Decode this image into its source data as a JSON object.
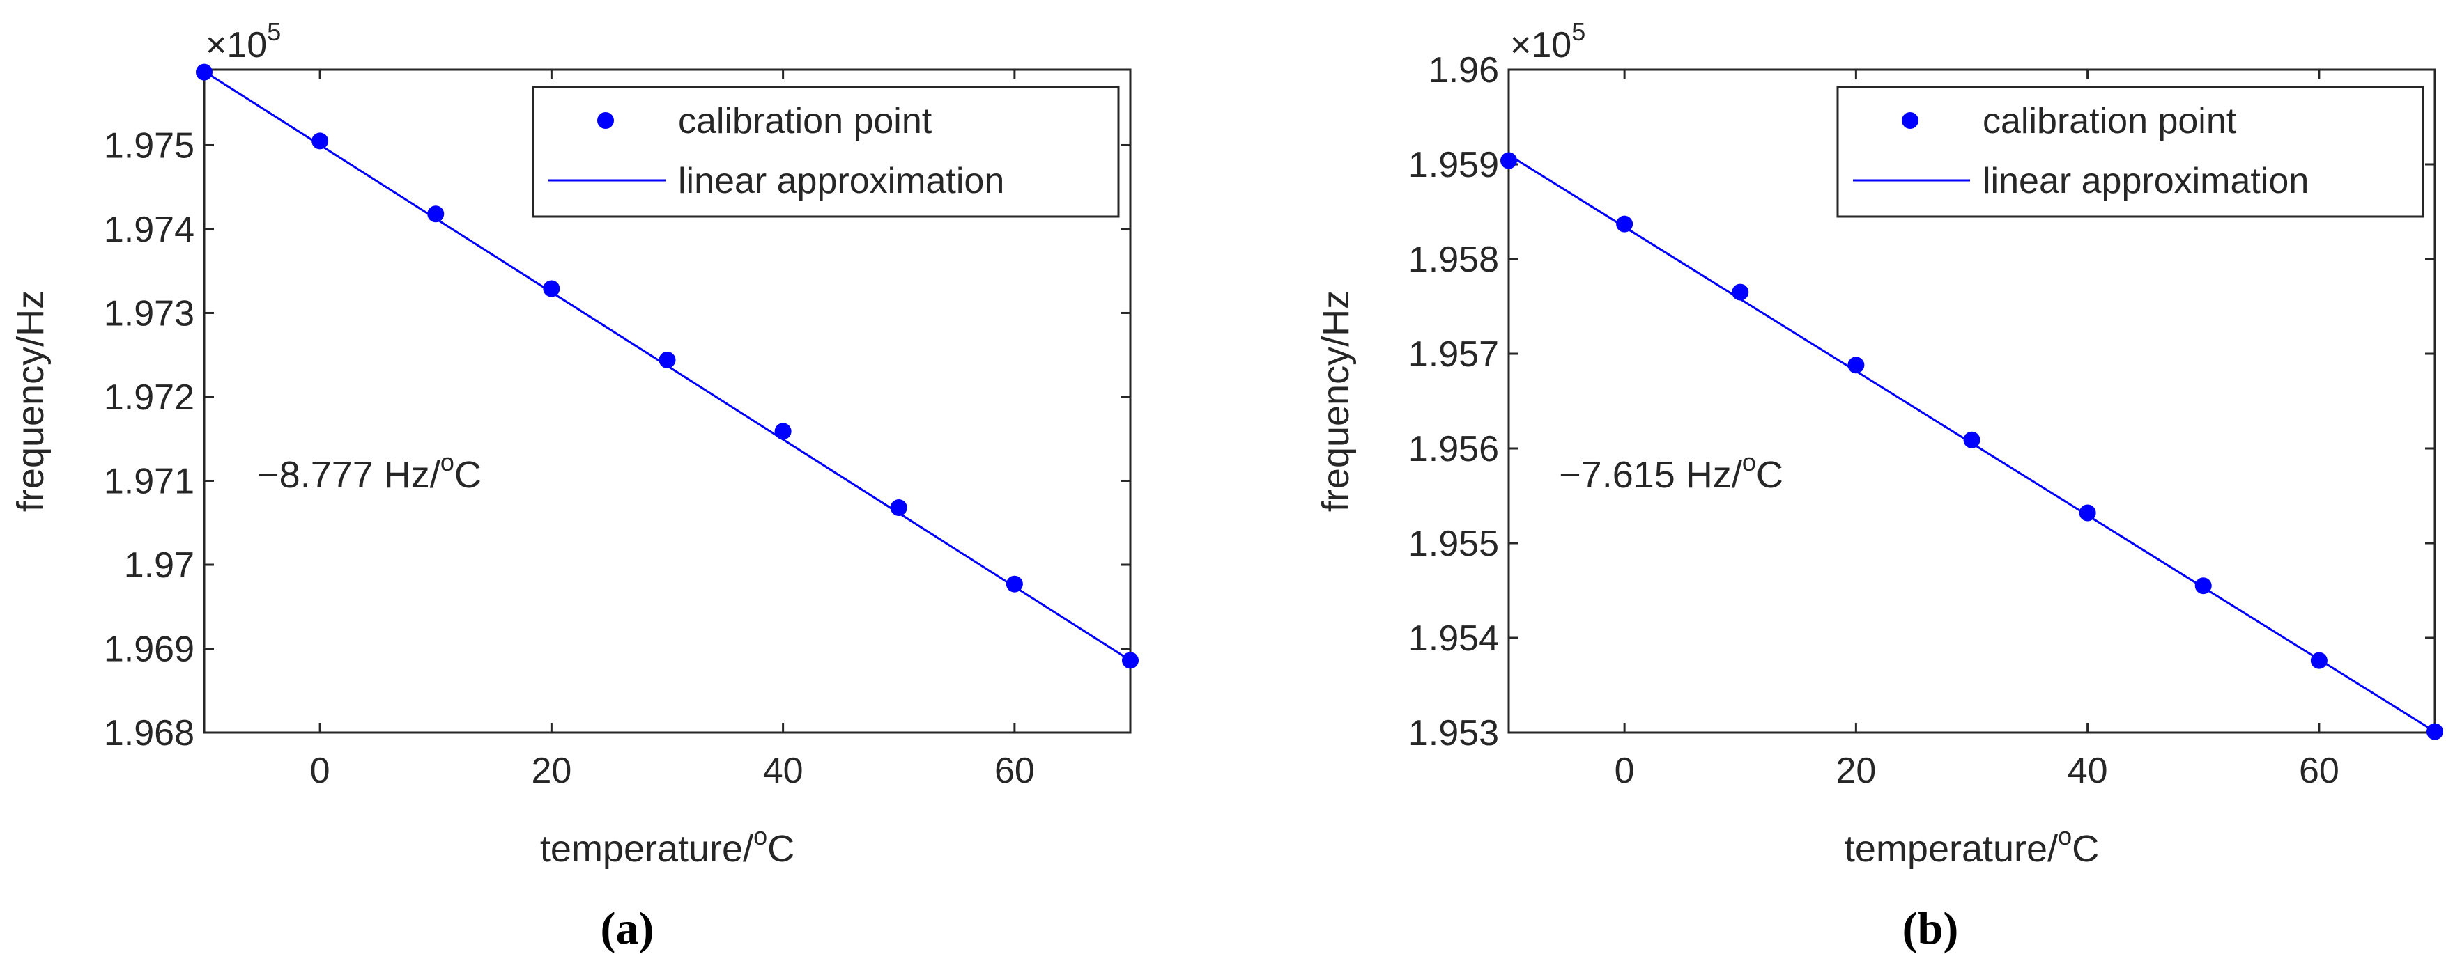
{
  "chart_data": [
    {
      "type": "line",
      "panel_label": "(a)",
      "xlabel": "temperature/",
      "xlabel_sup": "o",
      "xlabel_unit": "C",
      "ylabel": "frequency/Hz",
      "y_multiplier_base": "×10",
      "y_multiplier_exp": "5",
      "xlim": [
        -10,
        70
      ],
      "ylim": [
        1.968,
        1.9759
      ],
      "x_ticks": [
        0,
        20,
        40,
        60
      ],
      "x_tick_labels": [
        "0",
        "20",
        "40",
        "60"
      ],
      "y_ticks": [
        1.968,
        1.969,
        1.97,
        1.971,
        1.972,
        1.973,
        1.974,
        1.975
      ],
      "y_tick_labels": [
        "1.968",
        "1.969",
        "1.97",
        "1.971",
        "1.972",
        "1.973",
        "1.974",
        "1.975"
      ],
      "annotation": "−8.777 Hz/",
      "annotation_sup": "o",
      "annotation_unit": "C",
      "series": [
        {
          "name": "calibration point",
          "style": "markers",
          "x": [
            -10,
            0,
            10,
            20,
            30,
            40,
            50,
            60,
            70
          ],
          "y": [
            1.97587,
            1.97505,
            1.97418,
            1.97329,
            1.97244,
            1.97159,
            1.97068,
            1.96977,
            1.96886
          ]
        },
        {
          "name": "linear approximation",
          "style": "line",
          "x": [
            -10,
            70
          ],
          "y": [
            1.97588,
            1.96886
          ]
        }
      ],
      "legend": [
        "calibration point",
        "linear approximation"
      ],
      "legend_position": "top-right"
    },
    {
      "type": "line",
      "panel_label": "(b)",
      "xlabel": "temperature/",
      "xlabel_sup": "o",
      "xlabel_unit": "C",
      "ylabel": "frequency/Hz",
      "y_multiplier_base": "×10",
      "y_multiplier_exp": "5",
      "xlim": [
        -10,
        70
      ],
      "ylim": [
        1.953,
        1.96
      ],
      "x_ticks": [
        0,
        20,
        40,
        60
      ],
      "x_tick_labels": [
        "0",
        "20",
        "40",
        "60"
      ],
      "y_ticks": [
        1.953,
        1.954,
        1.955,
        1.956,
        1.957,
        1.958,
        1.959,
        1.96
      ],
      "y_tick_labels": [
        "1.953",
        "1.954",
        "1.955",
        "1.956",
        "1.957",
        "1.958",
        "1.959",
        "1.96"
      ],
      "annotation": "−7.615 Hz/",
      "annotation_sup": "o",
      "annotation_unit": "C",
      "series": [
        {
          "name": "calibration point",
          "style": "markers",
          "x": [
            -10,
            0,
            10,
            20,
            30,
            40,
            50,
            60,
            70
          ],
          "y": [
            1.95904,
            1.95837,
            1.95765,
            1.95688,
            1.95609,
            1.95532,
            1.95455,
            1.95376,
            1.95301
          ]
        },
        {
          "name": "linear approximation",
          "style": "line",
          "x": [
            -10,
            70
          ],
          "y": [
            1.9591,
            1.95301
          ]
        }
      ],
      "legend": [
        "calibration point",
        "linear approximation"
      ],
      "legend_position": "top-right"
    }
  ],
  "colors": {
    "series": "#0000ff",
    "axis": "#262626",
    "background": "#ffffff"
  }
}
